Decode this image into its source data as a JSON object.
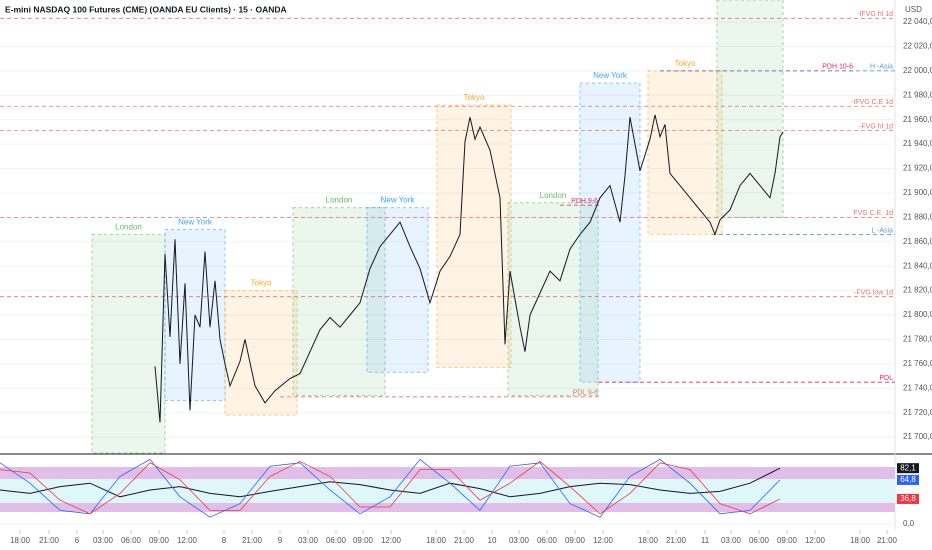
{
  "chart_data": [
    {
      "type": "line",
      "title": "E-mini NASDAQ 100 Futures (CME) (OANDA EU Clients) · 15 · OANDA",
      "y_axis_label": "USD",
      "xlim": [
        0,
        895
      ],
      "ylim": [
        21687,
        22058
      ],
      "xticks": [
        {
          "value": 20,
          "label": "18:00"
        },
        {
          "value": 49,
          "label": "21:00"
        },
        {
          "value": 77,
          "label": "6"
        },
        {
          "value": 103,
          "label": "03:00"
        },
        {
          "value": 131,
          "label": "06:00"
        },
        {
          "value": 159,
          "label": "09:00"
        },
        {
          "value": 187,
          "label": "12:00"
        },
        {
          "value": 224,
          "label": "8"
        },
        {
          "value": 252,
          "label": "21:00"
        },
        {
          "value": 280,
          "label": "9"
        },
        {
          "value": 308,
          "label": "03:00"
        },
        {
          "value": 336,
          "label": "06:00"
        },
        {
          "value": 363,
          "label": "09:00"
        },
        {
          "value": 391,
          "label": "12:00"
        },
        {
          "value": 436,
          "label": "18:00"
        },
        {
          "value": 464,
          "label": "21:00"
        },
        {
          "value": 492,
          "label": "10"
        },
        {
          "value": 519,
          "label": "03:00"
        },
        {
          "value": 547,
          "label": "06:00"
        },
        {
          "value": 575,
          "label": "09:00"
        },
        {
          "value": 603,
          "label": "12:00"
        },
        {
          "value": 648,
          "label": "18:00"
        },
        {
          "value": 676,
          "label": "21:00"
        },
        {
          "value": 705,
          "label": "11"
        },
        {
          "value": 731,
          "label": "03:00"
        },
        {
          "value": 759,
          "label": "06:00"
        },
        {
          "value": 787,
          "label": "09:00"
        },
        {
          "value": 815,
          "label": "12:00"
        },
        {
          "value": 860,
          "label": "18:00"
        },
        {
          "value": 887,
          "label": "21:00"
        }
      ],
      "yticks": [
        {
          "value": 21700,
          "label": "21 700,0"
        },
        {
          "value": 21720,
          "label": "21 720,0"
        },
        {
          "value": 21740,
          "label": "21 740,0"
        },
        {
          "value": 21760,
          "label": "21 760,0"
        },
        {
          "value": 21780,
          "label": "21 780,0"
        },
        {
          "value": 21800,
          "label": "21 800,0"
        },
        {
          "value": 21820,
          "label": "21 820,0"
        },
        {
          "value": 21840,
          "label": "21 840,0"
        },
        {
          "value": 21860,
          "label": "21 860,0"
        },
        {
          "value": 21880,
          "label": "21 880,0"
        },
        {
          "value": 21900,
          "label": "21 900,0"
        },
        {
          "value": 21920,
          "label": "21 920,0"
        },
        {
          "value": 21940,
          "label": "21 940,0"
        },
        {
          "value": 21960,
          "label": "21 960,0"
        },
        {
          "value": 21980,
          "label": "21 980,0"
        },
        {
          "value": 22000,
          "label": "22 000,0"
        },
        {
          "value": 22020,
          "label": "22 020,0"
        },
        {
          "value": 22040,
          "label": "22 040,0"
        }
      ],
      "series": [
        {
          "color": "#131722",
          "x": [
            155,
            160,
            165,
            170,
            175,
            180,
            185,
            190,
            195,
            200,
            205,
            210,
            215,
            220,
            225,
            230,
            240,
            245,
            255,
            265,
            275,
            290,
            300,
            310,
            320,
            330,
            340,
            350,
            360,
            370,
            380,
            390,
            400,
            410,
            420,
            430,
            440,
            450,
            460,
            465,
            470,
            475,
            480,
            490,
            500,
            505,
            510,
            520,
            525,
            530,
            540,
            550,
            560,
            570,
            580,
            590,
            600,
            610,
            620,
            625,
            630,
            635,
            640,
            650,
            655,
            660,
            665,
            670,
            680,
            690,
            700,
            710,
            715,
            720,
            730,
            740,
            750,
            760,
            770,
            775,
            780,
            783
          ],
          "values": [
            21758,
            21712,
            21850,
            21782,
            21862,
            21760,
            21826,
            21722,
            21800,
            21790,
            21852,
            21790,
            21828,
            21780,
            21760,
            21742,
            21762,
            21780,
            21742,
            21728,
            21738,
            21748,
            21752,
            21770,
            21788,
            21798,
            21790,
            21800,
            21810,
            21838,
            21856,
            21866,
            21876,
            21856,
            21838,
            21810,
            21836,
            21848,
            21866,
            21942,
            21962,
            21944,
            21954,
            21935,
            21896,
            21776,
            21836,
            21790,
            21770,
            21800,
            21818,
            21836,
            21828,
            21854,
            21866,
            21876,
            21896,
            21906,
            21876,
            21914,
            21962,
            21940,
            21918,
            21944,
            21964,
            21946,
            21956,
            21916,
            21906,
            21896,
            21886,
            21876,
            21866,
            21878,
            21886,
            21906,
            21916,
            21906,
            21896,
            21916,
            21946,
            21950
          ]
        }
      ],
      "sessions": [
        {
          "label": "London",
          "color": "#66bb6a",
          "x": [
            92,
            165
          ],
          "y": [
            21687,
            21866
          ]
        },
        {
          "label": "New York",
          "color": "#42a5f5",
          "x": [
            165,
            225
          ],
          "y": [
            21730,
            21870
          ]
        },
        {
          "label": "Tokyo",
          "color": "#ffa726",
          "x": [
            225,
            297
          ],
          "y": [
            21718,
            21820
          ]
        },
        {
          "label": "London",
          "color": "#66bb6a",
          "x": [
            293,
            385
          ],
          "y": [
            21734,
            21888
          ]
        },
        {
          "label": "New York",
          "color": "#42a5f5",
          "x": [
            367,
            428
          ],
          "y": [
            21753,
            21888
          ]
        },
        {
          "label": "Tokyo",
          "color": "#ffa726",
          "x": [
            437,
            511
          ],
          "y": [
            21757,
            21972
          ]
        },
        {
          "label": "London",
          "color": "#66bb6a",
          "x": [
            508,
            598
          ],
          "y": [
            21734,
            21892
          ]
        },
        {
          "label": "New York",
          "color": "#42a5f5",
          "x": [
            580,
            640
          ],
          "y": [
            21745,
            21990
          ]
        },
        {
          "label": "Tokyo",
          "color": "#ffa726",
          "x": [
            648,
            722
          ],
          "y": [
            21866,
            22000
          ]
        },
        {
          "label": "London",
          "color": "#66bb6a",
          "x": [
            717,
            783
          ],
          "y": [
            21880,
            22058
          ]
        }
      ],
      "levels": [
        {
          "label": "-IFVG hl 1d",
          "value": 22043,
          "color": "#e57373",
          "x": [
            0,
            895
          ]
        },
        {
          "label": "-IFVG C.E 1d",
          "value": 21971,
          "color": "#e57373",
          "x": [
            0,
            895
          ]
        },
        {
          "label": "-FVG hl 1d",
          "value": 21951,
          "color": "#e57373",
          "x": [
            0,
            895
          ]
        },
        {
          "label": "FVG C.E. 1d",
          "value": 21880,
          "color": "#e57373",
          "x": [
            0,
            895
          ]
        },
        {
          "label": "-FVG low 1d",
          "value": 21815,
          "color": "#e57373",
          "x": [
            0,
            895
          ]
        },
        {
          "label": "PDH 10-6",
          "value": 22000,
          "color": "#e91e63",
          "x": [
            660,
            855
          ]
        },
        {
          "label": "H -Asia",
          "value": 22000,
          "color": "#5b9bd5",
          "x": [
            660,
            895
          ]
        },
        {
          "label": "L -Asia",
          "value": 21866,
          "color": "#5b9bd5",
          "x": [
            712,
            895
          ]
        },
        {
          "label": "PDL",
          "value": 21745,
          "color": "#e91e63",
          "x": [
            598,
            895
          ]
        },
        {
          "label": "PDH 9-6",
          "value": 21890,
          "color": "#e91e63",
          "x": [
            560,
            600
          ]
        },
        {
          "label": "PDL 9-6",
          "value": 21733,
          "color": "#e57373",
          "x": [
            280,
            600
          ]
        }
      ]
    },
    {
      "type": "line",
      "xlim": [
        0,
        895
      ],
      "ylim": [
        0,
        100
      ],
      "yticks": [
        {
          "value": 0,
          "label": "0,0"
        }
      ],
      "x": [
        0,
        30,
        60,
        90,
        120,
        150,
        180,
        210,
        240,
        270,
        300,
        330,
        360,
        390,
        420,
        450,
        480,
        510,
        540,
        570,
        600,
        630,
        660,
        690,
        720,
        750,
        780
      ],
      "series": [
        {
          "color": "#131722",
          "values": [
            50,
            45,
            55,
            60,
            40,
            50,
            55,
            45,
            40,
            48,
            55,
            62,
            58,
            50,
            45,
            60,
            52,
            40,
            45,
            55,
            60,
            58,
            50,
            45,
            48,
            60,
            82.1
          ],
          "value_labels": [
            null,
            null,
            null,
            null,
            null,
            null,
            null,
            null,
            null,
            null,
            null,
            null,
            null,
            null,
            null,
            null,
            null,
            null,
            null,
            null,
            null,
            null,
            null,
            null,
            null,
            null,
            "82,1"
          ]
        },
        {
          "color": "#2962ff",
          "values": [
            90,
            60,
            20,
            15,
            70,
            95,
            40,
            10,
            30,
            85,
            90,
            50,
            15,
            40,
            95,
            60,
            20,
            85,
            90,
            30,
            10,
            70,
            95,
            60,
            15,
            20,
            64.8
          ],
          "value_labels": [
            null,
            null,
            null,
            null,
            null,
            null,
            null,
            null,
            null,
            null,
            null,
            null,
            null,
            null,
            null,
            null,
            null,
            null,
            null,
            null,
            null,
            null,
            null,
            null,
            null,
            null,
            "64,8"
          ]
        },
        {
          "color": "#f23645",
          "values": [
            80,
            75,
            35,
            15,
            45,
            90,
            65,
            20,
            20,
            70,
            92,
            70,
            25,
            25,
            80,
            80,
            35,
            60,
            92,
            55,
            15,
            45,
            90,
            80,
            30,
            15,
            36.8
          ],
          "value_labels": [
            null,
            null,
            null,
            null,
            null,
            null,
            null,
            null,
            null,
            null,
            null,
            null,
            null,
            null,
            null,
            null,
            null,
            null,
            null,
            null,
            null,
            null,
            null,
            null,
            null,
            null,
            "36,8"
          ]
        }
      ]
    }
  ]
}
